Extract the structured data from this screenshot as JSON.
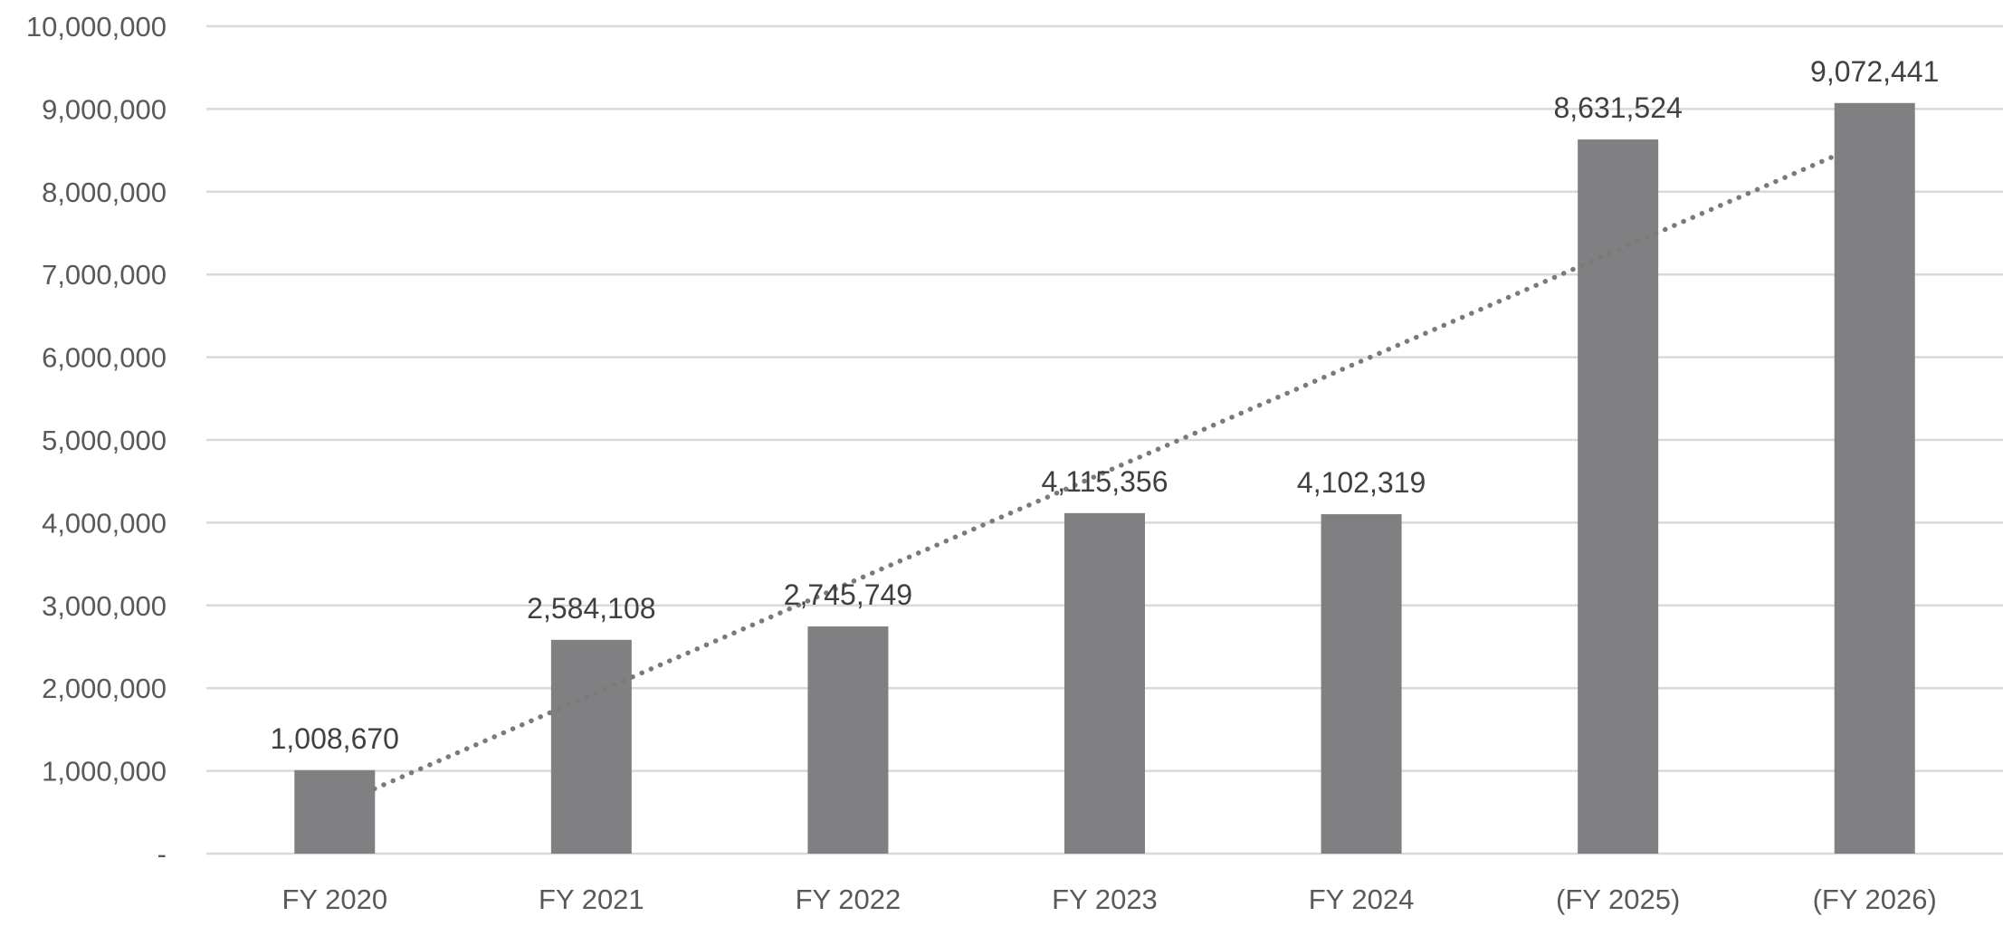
{
  "chart_data": {
    "type": "bar",
    "categories": [
      "FY 2020",
      "FY 2021",
      "FY 2022",
      "FY 2023",
      "FY 2024",
      "(FY 2025)",
      "(FY 2026)"
    ],
    "values": [
      1008670,
      2584108,
      2745749,
      4115356,
      4102319,
      8631524,
      9072441
    ],
    "data_labels": [
      "1,008,670",
      "2,584,108",
      "2,745,749",
      "4,115,356",
      "4,102,319",
      "8,631,524",
      "9,072,441"
    ],
    "y_tick_values": [
      0,
      1000000,
      2000000,
      3000000,
      4000000,
      5000000,
      6000000,
      7000000,
      8000000,
      9000000,
      10000000
    ],
    "y_tick_labels": [
      "-",
      "1,000,000",
      "2,000,000",
      "3,000,000",
      "4,000,000",
      "5,000,000",
      "6,000,000",
      "7,000,000",
      "8,000,000",
      "9,000,000",
      "10,000,000"
    ],
    "ylim": [
      0,
      10000000
    ],
    "title": "",
    "xlabel": "",
    "ylabel": "",
    "grid": true,
    "legend": "none",
    "trendline": {
      "type": "linear",
      "style": "dotted"
    },
    "colors": {
      "bar": "#808083",
      "grid": "#d9d9d9",
      "trendline": "#7a7a7a",
      "tick_text": "#595959",
      "label_text": "#404040"
    }
  }
}
